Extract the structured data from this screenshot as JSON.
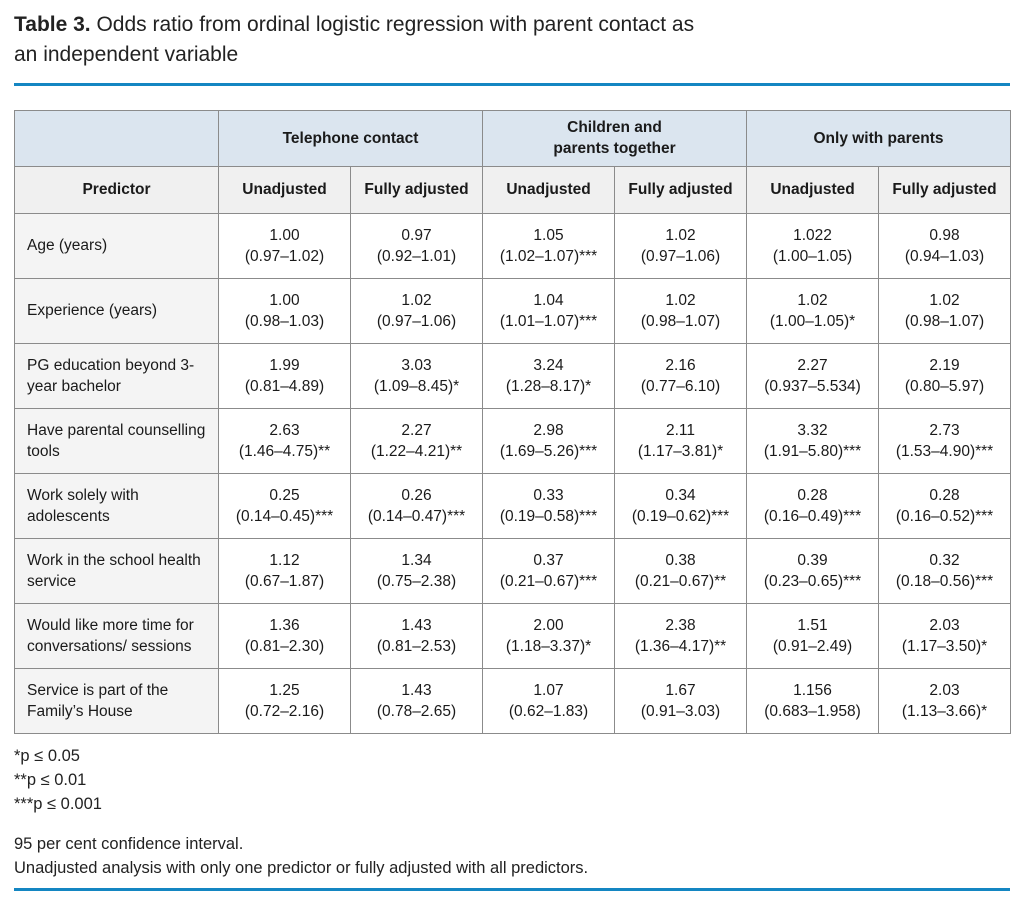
{
  "page": {
    "title_prefix": "Table 3.",
    "title_line1": " Odds ratio from ordinal logistic regression with parent contact as",
    "title_line2": "an independent variable"
  },
  "table": {
    "group_headers": {
      "telephone": "Telephone contact",
      "children_line1": "Children and",
      "children_line2": "parents together",
      "parents": "Only with parents"
    },
    "column_headers": {
      "predictor": "Predictor",
      "unadjusted": "Unadjusted",
      "fully_adjusted": "Fully adjusted"
    },
    "rows": [
      {
        "predictor": "Age (years)",
        "cells": [
          {
            "or": "1.00",
            "ci": "(0.97–1.02)"
          },
          {
            "or": "0.97",
            "ci": "(0.92–1.01)"
          },
          {
            "or": "1.05",
            "ci": "(1.02–1.07)***"
          },
          {
            "or": "1.02",
            "ci": "(0.97–1.06)"
          },
          {
            "or": "1.022",
            "ci": "(1.00–1.05)"
          },
          {
            "or": "0.98",
            "ci": "(0.94–1.03)"
          }
        ]
      },
      {
        "predictor": "Experience (years)",
        "cells": [
          {
            "or": "1.00",
            "ci": "(0.98–1.03)"
          },
          {
            "or": "1.02",
            "ci": "(0.97–1.06)"
          },
          {
            "or": "1.04",
            "ci": "(1.01–1.07)***"
          },
          {
            "or": "1.02",
            "ci": "(0.98–1.07)"
          },
          {
            "or": "1.02",
            "ci": "(1.00–1.05)*"
          },
          {
            "or": "1.02",
            "ci": "(0.98–1.07)"
          }
        ]
      },
      {
        "predictor": "PG education beyond 3-year bachelor",
        "cells": [
          {
            "or": "1.99",
            "ci": "(0.81–4.89)"
          },
          {
            "or": "3.03",
            "ci": "(1.09–8.45)*"
          },
          {
            "or": "3.24",
            "ci": "(1.28–8.17)*"
          },
          {
            "or": "2.16",
            "ci": "(0.77–6.10)"
          },
          {
            "or": "2.27",
            "ci": "(0.937–5.534)"
          },
          {
            "or": "2.19",
            "ci": "(0.80–5.97)"
          }
        ]
      },
      {
        "predictor": "Have parental counselling tools",
        "cells": [
          {
            "or": "2.63",
            "ci": "(1.46–4.75)**"
          },
          {
            "or": "2.27",
            "ci": "(1.22–4.21)**"
          },
          {
            "or": "2.98",
            "ci": "(1.69–5.26)***"
          },
          {
            "or": "2.11",
            "ci": "(1.17–3.81)*"
          },
          {
            "or": "3.32",
            "ci": "(1.91–5.80)***"
          },
          {
            "or": "2.73",
            "ci": "(1.53–4.90)***"
          }
        ]
      },
      {
        "predictor": "Work solely with adolescents",
        "cells": [
          {
            "or": "0.25",
            "ci": "(0.14–0.45)***"
          },
          {
            "or": "0.26",
            "ci": "(0.14–0.47)***"
          },
          {
            "or": "0.33",
            "ci": "(0.19–0.58)***"
          },
          {
            "or": "0.34",
            "ci": "(0.19–0.62)***"
          },
          {
            "or": "0.28",
            "ci": "(0.16–0.49)***"
          },
          {
            "or": "0.28",
            "ci": "(0.16–0.52)***"
          }
        ]
      },
      {
        "predictor": "Work in the school health service",
        "cells": [
          {
            "or": "1.12",
            "ci": "(0.67–1.87)"
          },
          {
            "or": "1.34",
            "ci": "(0.75–2.38)"
          },
          {
            "or": "0.37",
            "ci": "(0.21–0.67)***"
          },
          {
            "or": "0.38",
            "ci": "(0.21–0.67)**"
          },
          {
            "or": "0.39",
            "ci": "(0.23–0.65)***"
          },
          {
            "or": "0.32",
            "ci": "(0.18–0.56)***"
          }
        ]
      },
      {
        "predictor": "Would like more time for conversations/ sessions",
        "cells": [
          {
            "or": "1.36",
            "ci": "(0.81–2.30)"
          },
          {
            "or": "1.43",
            "ci": "(0.81–2.53)"
          },
          {
            "or": "2.00",
            "ci": "(1.18–3.37)*"
          },
          {
            "or": "2.38",
            "ci": "(1.36–4.17)**"
          },
          {
            "or": "1.51",
            "ci": "(0.91–2.49)"
          },
          {
            "or": "2.03",
            "ci": "(1.17–3.50)*"
          }
        ]
      },
      {
        "predictor": "Service is part of the Family’s House",
        "cells": [
          {
            "or": "1.25",
            "ci": "(0.72–2.16)"
          },
          {
            "or": "1.43",
            "ci": "(0.78–2.65)"
          },
          {
            "or": "1.07",
            "ci": "(0.62–1.83)"
          },
          {
            "or": "1.67",
            "ci": "(0.91–3.03)"
          },
          {
            "or": "1.156",
            "ci": "(0.683–1.958)"
          },
          {
            "or": "2.03",
            "ci": "(1.13–3.66)*"
          }
        ]
      }
    ]
  },
  "footnotes": {
    "sig": [
      "*p ≤ 0.05",
      "**p ≤ 0.01",
      "***p ≤ 0.001"
    ],
    "notes": [
      "95 per cent confidence interval.",
      "Unadjusted analysis with only one predictor or fully adjusted with all predictors."
    ]
  },
  "colors": {
    "accent_rule": "#1486c2",
    "group_header_bg": "#dbe5ef",
    "subheader_bg": "#f0f0f0",
    "predictor_col_bg": "#f4f4f4",
    "border": "#8b8b8b"
  }
}
